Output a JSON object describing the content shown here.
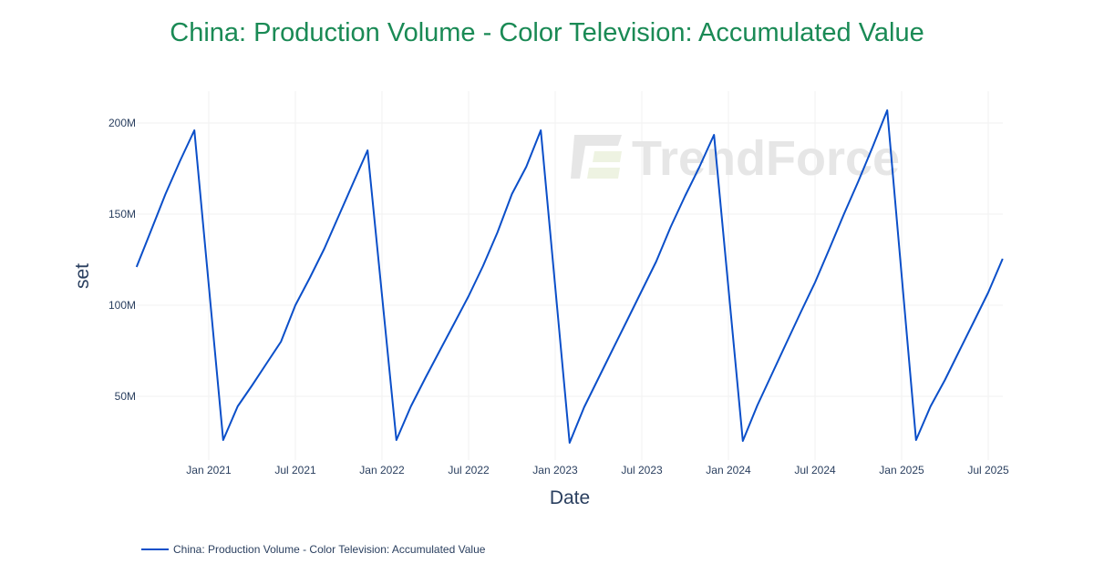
{
  "chart_data": {
    "type": "line",
    "title": "China: Production Volume - Color Television: Accumulated Value",
    "xlabel": "Date",
    "ylabel": "set",
    "y_unit": "M",
    "ylim": [
      15,
      220
    ],
    "grid": true,
    "legend_position": "bottom-left",
    "x_tick_labels": [
      "Jan 2021",
      "Jul 2021",
      "Jan 2022",
      "Jul 2022",
      "Jan 2023",
      "Jul 2023",
      "Jan 2024",
      "Jul 2024",
      "Jan 2025",
      "Jul 2025"
    ],
    "y_tick_labels": [
      "50M",
      "100M",
      "150M",
      "200M"
    ],
    "y_tick_values": [
      50,
      100,
      150,
      200
    ],
    "series": [
      {
        "name": "China: Production Volume - Color Television: Accumulated Value",
        "color": "#0b4fc9",
        "x": [
          "2020-08",
          "2020-09",
          "2020-10",
          "2020-11",
          "2020-12",
          "2021-02",
          "2021-03",
          "2021-04",
          "2021-05",
          "2021-06",
          "2021-07",
          "2021-08",
          "2021-09",
          "2021-10",
          "2021-11",
          "2021-12",
          "2022-02",
          "2022-03",
          "2022-04",
          "2022-05",
          "2022-06",
          "2022-07",
          "2022-08",
          "2022-09",
          "2022-10",
          "2022-11",
          "2022-12",
          "2023-02",
          "2023-03",
          "2023-04",
          "2023-05",
          "2023-06",
          "2023-07",
          "2023-08",
          "2023-09",
          "2023-10",
          "2023-11",
          "2023-12",
          "2024-02",
          "2024-03",
          "2024-04",
          "2024-05",
          "2024-06",
          "2024-07",
          "2024-08",
          "2024-09",
          "2024-10",
          "2024-11",
          "2024-12",
          "2025-02",
          "2025-03",
          "2025-04",
          "2025-05",
          "2025-06",
          "2025-07",
          "2025-08"
        ],
        "values": [
          121,
          141,
          161,
          179,
          196,
          26,
          44.5,
          56,
          68,
          80,
          100,
          115,
          131,
          149,
          167,
          185,
          26,
          44.5,
          60,
          75,
          90,
          105,
          121.5,
          140,
          161,
          176,
          196,
          24.5,
          44,
          60,
          76,
          92,
          108,
          124,
          143,
          160,
          176,
          193.5,
          25.5,
          45,
          62,
          79,
          96,
          112.5,
          131,
          150,
          168,
          187,
          207,
          26,
          44.5,
          59,
          75,
          91,
          107,
          125.5
        ]
      }
    ]
  },
  "legend": {
    "items": [
      {
        "label": "China: Production Volume - Color Television: Accumulated Value",
        "color": "#0b4fc9"
      }
    ]
  },
  "watermark": {
    "text": "TrendForce"
  }
}
